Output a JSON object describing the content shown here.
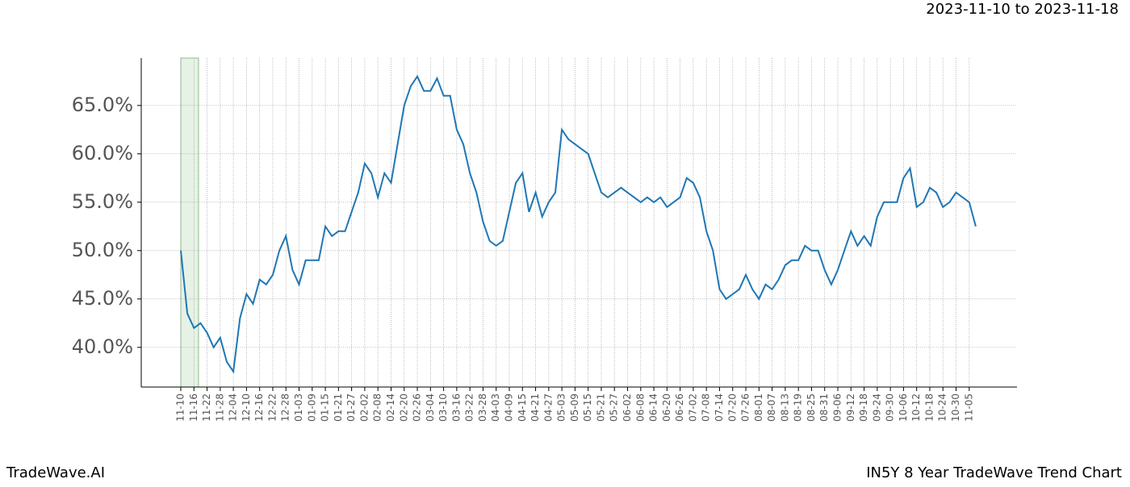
{
  "chart_data": {
    "type": "line",
    "date_range": "2023-11-10 to 2023-11-18",
    "brand": "TradeWave.AI",
    "chart_title": "IN5Y 8 Year TradeWave Trend Chart",
    "categories": [
      "11-10",
      null,
      "11-16",
      null,
      "11-22",
      null,
      "11-28",
      null,
      "12-04",
      null,
      "12-10",
      null,
      "12-16",
      null,
      "12-22",
      null,
      "12-28",
      null,
      "01-03",
      null,
      "01-09",
      null,
      "01-15",
      null,
      "01-21",
      null,
      "01-27",
      null,
      "02-02",
      null,
      "02-08",
      null,
      "02-14",
      null,
      "02-20",
      null,
      "02-26",
      null,
      "03-04",
      null,
      "03-10",
      null,
      "03-16",
      null,
      "03-22",
      null,
      "03-28",
      null,
      "04-03",
      null,
      "04-09",
      null,
      "04-15",
      null,
      "04-21",
      null,
      "04-27",
      null,
      "05-03",
      null,
      "05-09",
      null,
      "05-15",
      null,
      "05-21",
      null,
      "05-27",
      null,
      "06-02",
      null,
      "06-08",
      null,
      "06-14",
      null,
      "06-20",
      null,
      "06-26",
      null,
      "07-02",
      null,
      "07-08",
      null,
      "07-14",
      null,
      "07-20",
      null,
      "07-26",
      null,
      "08-01",
      null,
      "08-07",
      null,
      "08-13",
      null,
      "08-19",
      null,
      "08-25",
      null,
      "08-31",
      null,
      "09-06",
      null,
      "09-12",
      null,
      "09-18",
      null,
      "09-24",
      null,
      "09-30",
      null,
      "10-06",
      null,
      "10-12",
      null,
      "10-18",
      null,
      "10-24",
      null,
      "10-30",
      null,
      "11-05",
      null
    ],
    "values": [
      50,
      43.5,
      42,
      42.5,
      41.5,
      40,
      41,
      38.5,
      37.5,
      43,
      45.5,
      44.5,
      47,
      46.5,
      47.5,
      50,
      51.5,
      48,
      46.5,
      49,
      49,
      49,
      52.5,
      51.5,
      52,
      52,
      54,
      56,
      59,
      58,
      55.5,
      58,
      57,
      61,
      65,
      67,
      68,
      66.5,
      66.5,
      67.8,
      66,
      66,
      62.5,
      61,
      58,
      56,
      53,
      51,
      50.5,
      51,
      54,
      57,
      58,
      54,
      56,
      53.5,
      55,
      56,
      62.5,
      61.5,
      61,
      60.5,
      60,
      58,
      56,
      55.5,
      56,
      56.5,
      56,
      55.5,
      55,
      55.5,
      55,
      55.5,
      54.5,
      55,
      55.5,
      57.5,
      57,
      55.5,
      52,
      50,
      46,
      45,
      45.5,
      46,
      47.5,
      46,
      45,
      46.5,
      46,
      47,
      48.5,
      49,
      49,
      50.5,
      50,
      50,
      48,
      46.5,
      48,
      50,
      52,
      50.5,
      51.5,
      50.5,
      53.5,
      55,
      55,
      55,
      57.5,
      58.5,
      54.5,
      55,
      56.5,
      56,
      54.5,
      55,
      56,
      55.5,
      55,
      52.5
    ],
    "color": "#1f77b4",
    "ylim": [
      35.9,
      69.9
    ],
    "yticks": [
      {
        "value": 40,
        "label": "40.0%"
      },
      {
        "value": 45,
        "label": "45.0%"
      },
      {
        "value": 50,
        "label": "50.0%"
      },
      {
        "value": 55,
        "label": "55.0%"
      },
      {
        "value": 60,
        "label": "60.0%"
      },
      {
        "value": 65,
        "label": "65.0%"
      }
    ],
    "grid": true
  }
}
